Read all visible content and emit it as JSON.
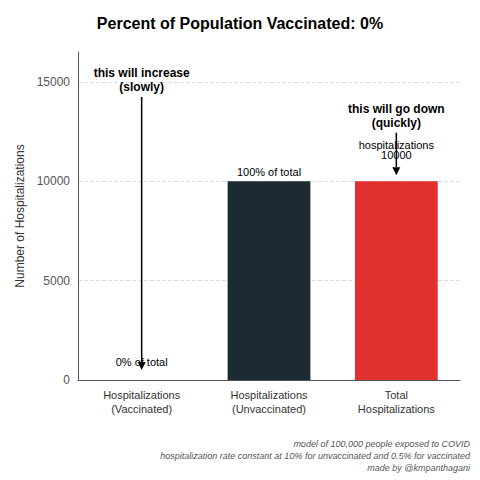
{
  "chart_data": {
    "type": "bar",
    "title": "Percent of Population Vaccinated: 0%",
    "categories": [
      "Hospitalizations\n(Vaccinated)",
      "Hospitalizations\n(Unvaccinated)",
      "Total\nHospitalizations"
    ],
    "values": [
      0,
      10000,
      10000
    ],
    "colors": [
      "#1c2b33",
      "#1c2b33",
      "#e03030"
    ],
    "ylabel": "Number of Hospitalizations",
    "ylim": [
      0,
      16500
    ],
    "yticks": [
      0,
      5000,
      10000,
      15000
    ],
    "grid": true,
    "annotations": [
      {
        "text": "0% of total",
        "x": "Hospitalizations\n(Vaccinated)",
        "y": 600
      },
      {
        "text": "100% of total",
        "x": "Hospitalizations\n(Unvaccinated)",
        "y": 10120
      },
      {
        "text": "10000",
        "x": "Total\nHospitalizations",
        "y": 11000
      },
      {
        "text": "hospitalizations",
        "x": "Total\nHospitalizations",
        "y": 11500
      },
      {
        "text": "this will increase\n(slowly)",
        "x": "Hospitalizations\n(Vaccinated)",
        "y": 15800,
        "arrow_to": 500
      },
      {
        "text": "this will go down\n(quickly)",
        "x": "Total\nHospitalizations",
        "y": 14000,
        "arrow_to": 10300
      }
    ],
    "footnote": "model of 100,000 people exposed to COVID\nhospitalization rate constant at 10% for unvaccinated and 0.5% for vaccinated\nmade by @kmpanthagani"
  }
}
